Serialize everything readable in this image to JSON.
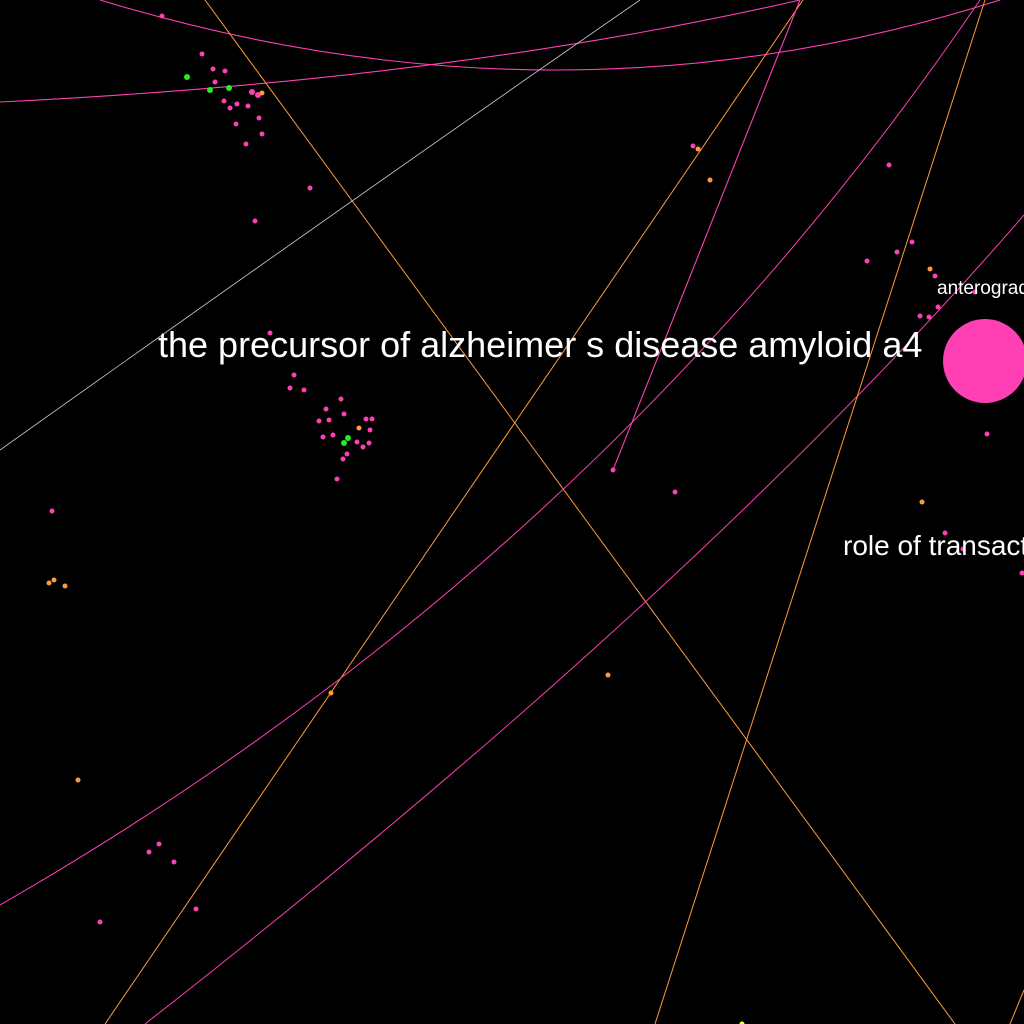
{
  "graph": {
    "background": "#000000",
    "colors": {
      "pink": "#ff3fb4",
      "orange": "#ff9a3c",
      "green": "#22ee22",
      "yellow": "#ffff33",
      "grey": "#cfcfcf"
    },
    "labels": [
      {
        "id": "label-precursor",
        "text": "the precursor of alzheimer s disease amyloid a4"
      },
      {
        "id": "label-anterograde",
        "text": "anterograde"
      },
      {
        "id": "label-role",
        "text": "role of transactivation"
      }
    ]
  }
}
